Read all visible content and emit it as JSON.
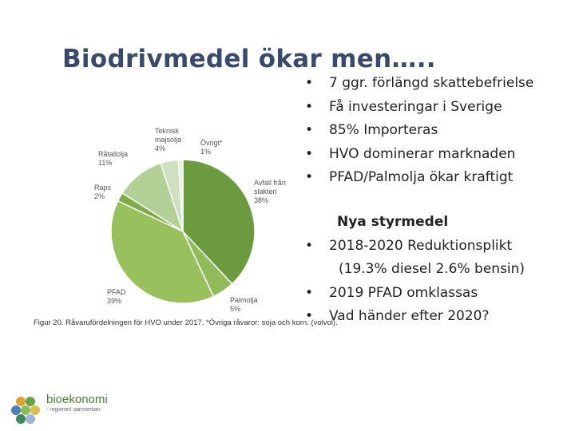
{
  "slide": {
    "title": "Biodrivmedel ökar men…..",
    "bullets_top": [
      "7 ggr. förlängd skattebefrielse",
      "Få investeringar i Sverige",
      " 85% Importeras",
      "HVO dominerar marknaden",
      "PFAD/Palmolja ökar kraftigt"
    ],
    "new_heading": "Nya styrmedel",
    "bullet_reduction": "2018-2020 Reduktionsplikt",
    "reduction_detail": "(19.3% diesel 2.6% bensin)",
    "bullet_pfad": "2019 PFAD omklassas",
    "bullet_after": "Vad händer efter 2020?"
  },
  "figure_caption": "Figur 20. Råvarufördelningen för HVO under 2017. *Övriga råvaror: soja och korn. (volvol).",
  "logo": {
    "name": "bioekonomi",
    "subtitle": "- regionerl samverkan"
  },
  "chart_data": {
    "type": "pie",
    "title": "",
    "slices": [
      {
        "label": "Avfall från slakteri",
        "value": 38,
        "value_label": "38%",
        "color": "#6c9a3e"
      },
      {
        "label": "Palmolja",
        "value": 5,
        "value_label": "5%",
        "color": "#8fbb5b"
      },
      {
        "label": "PFAD",
        "value": 39,
        "value_label": "39%",
        "color": "#98c15e"
      },
      {
        "label": "Raps",
        "value": 2,
        "value_label": "2%",
        "color": "#7faa4a"
      },
      {
        "label": "Råtallolja",
        "value": 11,
        "value_label": "11%",
        "color": "#b2d197"
      },
      {
        "label": "Teknisk majsolja",
        "value": 4,
        "value_label": "4%",
        "color": "#cfe0c0"
      },
      {
        "label": "Övrigt*",
        "value": 1,
        "value_label": "1%",
        "color": "#e6eedd"
      }
    ]
  }
}
